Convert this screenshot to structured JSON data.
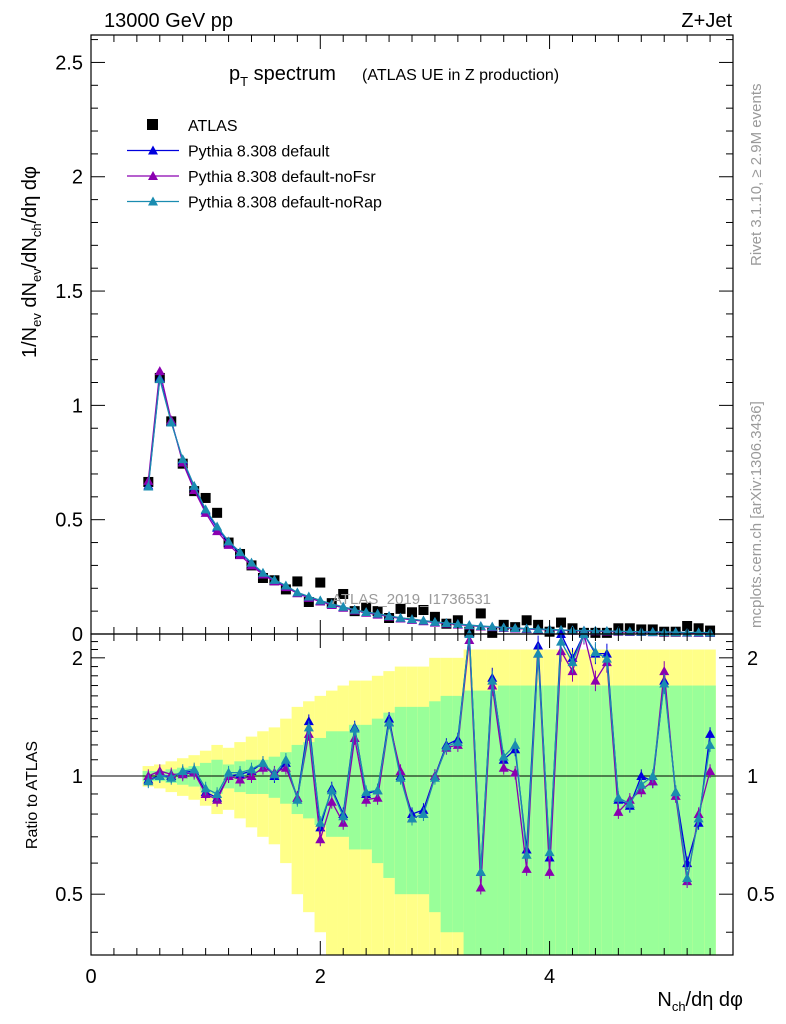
{
  "header": {
    "energy_label": "13000 GeV pp",
    "process_label": "Z+Jet"
  },
  "side_text": {
    "rivet": "Rivet 3.1.10, ≥ 2.9M events",
    "mcplots": "mcplots.cern.ch [arXiv:1306.3436]"
  },
  "chart_data": [
    {
      "panel": "main",
      "type": "scatter",
      "title_main": "p",
      "title_sub": "T",
      "title_rest": " spectrum",
      "title_note": "(ATLAS UE in Z production)",
      "ylabel_parts": [
        "1/N",
        "ev",
        " dN",
        "ev",
        "/dN",
        "ch",
        "/dη dφ"
      ],
      "watermark": "ATLAS_2019_I1736531",
      "xlim": [
        0,
        5.6
      ],
      "ylim": [
        0,
        2.62
      ],
      "yticks": [
        0,
        0.5,
        1,
        1.5,
        2,
        2.5
      ],
      "ytick_labels": [
        "0",
        "0.5",
        "1",
        "1.5",
        "2",
        "2.5"
      ],
      "legend_position": "top-left",
      "x": [
        0.5,
        0.6,
        0.7,
        0.8,
        0.9,
        1.0,
        1.1,
        1.2,
        1.3,
        1.4,
        1.5,
        1.6,
        1.7,
        1.8,
        1.9,
        2.0,
        2.1,
        2.2,
        2.3,
        2.4,
        2.5,
        2.6,
        2.7,
        2.8,
        2.9,
        3.0,
        3.1,
        3.2,
        3.3,
        3.4,
        3.5,
        3.6,
        3.7,
        3.8,
        3.9,
        4.0,
        4.1,
        4.2,
        4.3,
        4.4,
        4.5,
        4.6,
        4.7,
        4.8,
        4.9,
        5.0,
        5.1,
        5.2,
        5.3,
        5.4
      ],
      "series": [
        {
          "name": "ATLAS",
          "marker": "square",
          "color": "#000000",
          "values": [
            0.665,
            1.12,
            0.93,
            0.745,
            0.625,
            0.595,
            0.53,
            0.4,
            0.35,
            0.3,
            0.245,
            0.235,
            0.195,
            0.23,
            0.14,
            0.225,
            0.135,
            0.175,
            0.1,
            0.115,
            0.1,
            0.07,
            0.11,
            0.095,
            0.105,
            0.075,
            0.045,
            0.06,
            0.01,
            0.09,
            0.005,
            0.04,
            0.03,
            0.06,
            0.04,
            0.01,
            0.05,
            0.025,
            0.005,
            0.005,
            0.005,
            0.025,
            0.025,
            0.02,
            0.02,
            0.01,
            0.01,
            0.035,
            0.025,
            0.015
          ]
        },
        {
          "name": "Pythia 8.308 default",
          "marker": "triangle",
          "color": "#0000dd",
          "values": [
            0.65,
            1.12,
            0.93,
            0.76,
            0.645,
            0.54,
            0.465,
            0.4,
            0.355,
            0.31,
            0.265,
            0.235,
            0.21,
            0.18,
            0.162,
            0.145,
            0.13,
            0.118,
            0.105,
            0.095,
            0.088,
            0.078,
            0.07,
            0.064,
            0.058,
            0.052,
            0.047,
            0.043,
            0.038,
            0.034,
            0.031,
            0.028,
            0.025,
            0.023,
            0.021,
            0.019,
            0.017,
            0.015,
            0.014,
            0.013,
            0.012,
            0.011,
            0.01,
            0.009,
            0.008,
            0.008,
            0.007,
            0.006,
            0.006,
            0.005
          ]
        },
        {
          "name": "Pythia 8.308 default-noFsr",
          "marker": "triangle",
          "color": "#8a00b0",
          "values": [
            0.67,
            1.15,
            0.935,
            0.75,
            0.63,
            0.53,
            0.45,
            0.39,
            0.345,
            0.3,
            0.26,
            0.23,
            0.205,
            0.178,
            0.158,
            0.142,
            0.127,
            0.115,
            0.103,
            0.093,
            0.085,
            0.076,
            0.068,
            0.062,
            0.056,
            0.05,
            0.046,
            0.041,
            0.037,
            0.033,
            0.03,
            0.027,
            0.024,
            0.022,
            0.02,
            0.018,
            0.016,
            0.015,
            0.013,
            0.012,
            0.011,
            0.01,
            0.009,
            0.009,
            0.008,
            0.007,
            0.007,
            0.006,
            0.005,
            0.005
          ]
        },
        {
          "name": "Pythia 8.308 default-noRap",
          "marker": "triangle",
          "color": "#1a8cb0",
          "values": [
            0.645,
            1.115,
            0.925,
            0.765,
            0.648,
            0.545,
            0.47,
            0.405,
            0.358,
            0.312,
            0.268,
            0.237,
            0.212,
            0.182,
            0.164,
            0.147,
            0.131,
            0.119,
            0.106,
            0.096,
            0.089,
            0.079,
            0.071,
            0.065,
            0.059,
            0.053,
            0.048,
            0.044,
            0.039,
            0.035,
            0.032,
            0.029,
            0.026,
            0.024,
            0.022,
            0.02,
            0.018,
            0.016,
            0.015,
            0.014,
            0.013,
            0.012,
            0.011,
            0.01,
            0.009,
            0.009,
            0.008,
            0.007,
            0.007,
            0.006
          ]
        }
      ]
    },
    {
      "panel": "ratio",
      "type": "line",
      "ylabel": "Ratio to ATLAS",
      "xlabel_parts": [
        "N",
        "ch",
        "/dη dφ"
      ],
      "xlim": [
        0,
        5.6
      ],
      "ylim": [
        0.35,
        2.3
      ],
      "xticks": [
        0,
        2,
        4
      ],
      "xtick_labels": [
        "0",
        "2",
        "4"
      ],
      "yticks": [
        0.5,
        1,
        2
      ],
      "ytick_labels": [
        "0.5",
        "1",
        "2"
      ],
      "reference_line": 1,
      "band_colors": {
        "inner": "#99ff99",
        "outer": "#ffff88"
      },
      "band_inner_halfwidth": [
        0.03,
        0.03,
        0.04,
        0.05,
        0.06,
        0.08,
        0.1,
        0.07,
        0.09,
        0.1,
        0.1,
        0.12,
        0.15,
        0.2,
        0.22,
        0.25,
        0.3,
        0.3,
        0.35,
        0.35,
        0.4,
        0.45,
        0.5,
        0.5,
        0.5,
        0.55,
        0.6,
        0.6,
        0.65,
        0.65,
        0.65,
        0.7,
        0.7,
        0.7,
        0.7,
        0.7,
        0.7,
        0.7,
        0.7,
        0.7,
        0.7,
        0.7,
        0.7,
        0.7,
        0.7,
        0.7,
        0.7,
        0.7,
        0.7,
        0.7
      ],
      "band_outer_halfwidth": [
        0.06,
        0.07,
        0.09,
        0.11,
        0.13,
        0.16,
        0.2,
        0.18,
        0.22,
        0.26,
        0.3,
        0.33,
        0.4,
        0.5,
        0.55,
        0.6,
        0.65,
        0.7,
        0.75,
        0.75,
        0.8,
        0.85,
        0.9,
        0.9,
        0.9,
        1.0,
        1.0,
        1.0,
        1.1,
        1.1,
        1.1,
        1.1,
        1.1,
        1.1,
        1.1,
        1.1,
        1.1,
        1.1,
        1.1,
        1.1,
        1.1,
        1.1,
        1.1,
        1.1,
        1.1,
        1.1,
        1.1,
        1.1,
        1.1,
        1.1
      ],
      "series": [
        {
          "name": "Pythia 8.308 default",
          "color": "#0000dd",
          "values": [
            0.98,
            1.0,
            1.0,
            1.02,
            1.03,
            0.91,
            0.88,
            1.0,
            1.01,
            1.03,
            1.08,
            1.0,
            1.08,
            0.88,
            1.38,
            0.74,
            0.93,
            0.8,
            1.33,
            0.9,
            0.92,
            1.4,
            1.0,
            0.8,
            0.82,
            1.0,
            1.2,
            1.24,
            2.3,
            0.57,
            1.78,
            1.1,
            1.17,
            0.65,
            2.15,
            0.62,
            2.3,
            2.0,
            2.38,
            2.05,
            2.05,
            0.87,
            0.84,
            1.0,
            0.97,
            1.75,
            0.91,
            0.6,
            0.76,
            1.28
          ]
        },
        {
          "name": "Pythia 8.308 default-noFsr",
          "color": "#8a00b0",
          "values": [
            1.0,
            1.03,
            1.01,
            1.01,
            1.02,
            0.9,
            0.87,
            1.0,
            0.98,
            1.0,
            1.05,
            1.02,
            1.05,
            0.88,
            1.28,
            0.69,
            0.86,
            0.76,
            1.25,
            0.87,
            0.88,
            1.37,
            1.03,
            0.78,
            0.8,
            1.0,
            1.18,
            1.2,
            2.22,
            0.52,
            1.7,
            1.05,
            1.02,
            0.58,
            2.05,
            0.57,
            2.08,
            1.85,
            2.3,
            1.75,
            1.95,
            0.81,
            0.87,
            0.92,
            0.97,
            1.85,
            0.89,
            0.54,
            0.8,
            1.03
          ]
        },
        {
          "name": "Pythia 8.308 default-noRap",
          "color": "#1a8cb0",
          "values": [
            0.97,
            1.0,
            0.99,
            1.03,
            1.04,
            0.93,
            0.9,
            1.02,
            1.02,
            1.04,
            1.08,
            1.01,
            1.1,
            0.87,
            1.33,
            0.76,
            0.92,
            0.79,
            1.32,
            0.91,
            0.92,
            1.37,
            0.99,
            0.78,
            0.8,
            0.99,
            1.19,
            1.22,
            2.3,
            0.57,
            1.75,
            1.12,
            1.2,
            0.63,
            2.05,
            0.64,
            2.2,
            1.95,
            2.32,
            2.07,
            1.99,
            0.88,
            0.85,
            0.95,
            1.0,
            1.72,
            0.91,
            0.55,
            0.78,
            1.2
          ]
        }
      ]
    }
  ]
}
